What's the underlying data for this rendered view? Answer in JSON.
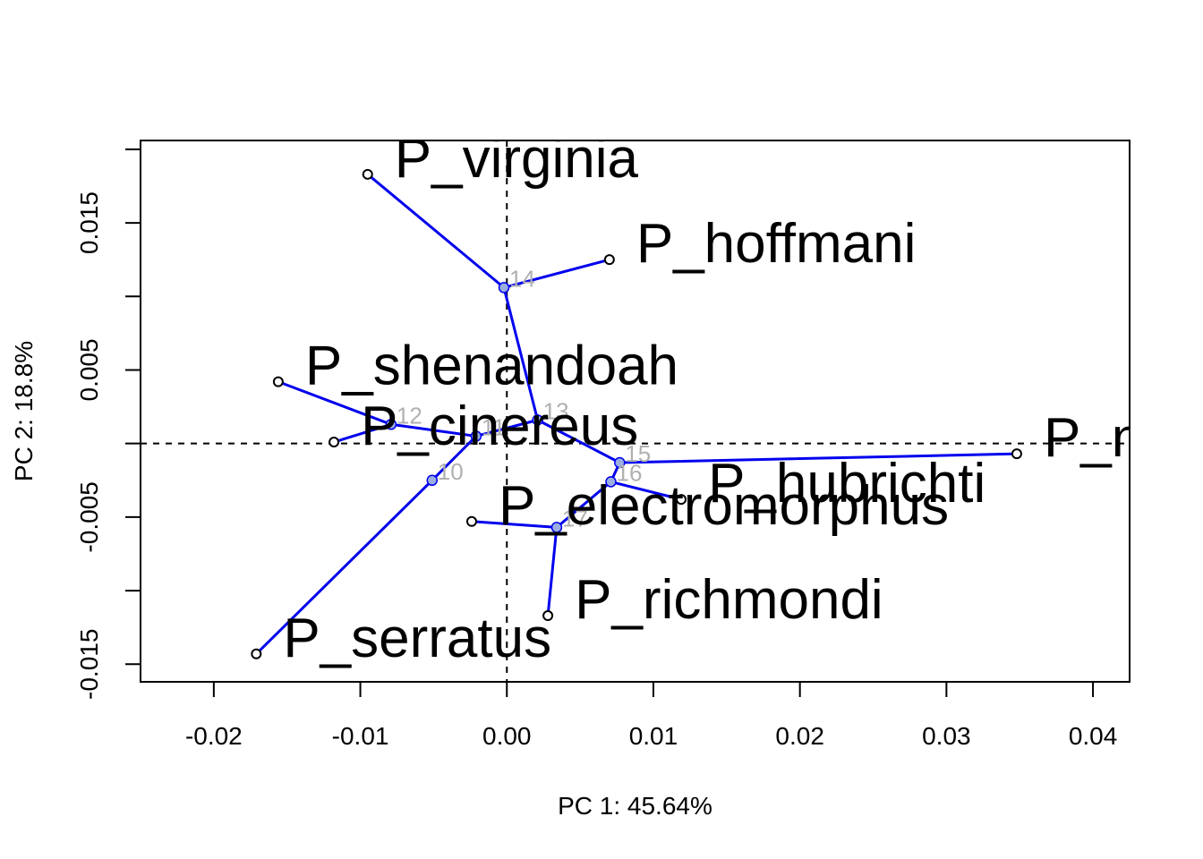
{
  "chart_data": {
    "type": "scatter",
    "title": "",
    "xlabel": "PC 1: 45.64%",
    "ylabel": "PC 2: 18.8%",
    "xlim": [
      -0.025,
      0.0425
    ],
    "ylim": [
      -0.0162,
      0.0206
    ],
    "x_ticks": [
      -0.02,
      -0.01,
      0.0,
      0.01,
      0.02,
      0.03,
      0.04
    ],
    "x_tick_labels": [
      "-0.02",
      "-0.01",
      "0.00",
      "0.01",
      "0.02",
      "0.03",
      "0.04"
    ],
    "y_ticks": [
      -0.015,
      -0.01,
      -0.005,
      0.0,
      0.005,
      0.01,
      0.015,
      0.02
    ],
    "y_tick_labels": [
      "-0.015",
      "",
      "-0.005",
      "",
      "0.005",
      "",
      "0.015",
      ""
    ],
    "reference_lines": {
      "x": 0,
      "y": 0,
      "style": "dashed"
    },
    "tips": [
      {
        "label": "P_virginia",
        "x": -0.0095,
        "y": 0.0183
      },
      {
        "label": "P_hoffmani",
        "x": 0.007,
        "y": 0.0125
      },
      {
        "label": "P_shenandoah",
        "x": -0.0156,
        "y": 0.0042
      },
      {
        "label": "P_cinereus",
        "x": -0.0118,
        "y": 0.0001
      },
      {
        "label": "P_serratus",
        "x": -0.0171,
        "y": -0.0143
      },
      {
        "label": "P_electromorphus",
        "x": -0.0024,
        "y": -0.0053
      },
      {
        "label": "P_richmondi",
        "x": 0.0028,
        "y": -0.0117
      },
      {
        "label": "P_hubrichti",
        "x": 0.0119,
        "y": -0.0038
      },
      {
        "label": "P_n",
        "x": 0.0348,
        "y": -0.0007
      }
    ],
    "nodes": [
      {
        "label": "10",
        "x": -0.0051,
        "y": -0.0025
      },
      {
        "label": "11",
        "x": -0.0021,
        "y": 0.0005
      },
      {
        "label": "12",
        "x": -0.0079,
        "y": 0.0013
      },
      {
        "label": "13",
        "x": 0.0021,
        "y": 0.0016
      },
      {
        "label": "14",
        "x": -0.0002,
        "y": 0.0106
      },
      {
        "label": "15",
        "x": 0.0077,
        "y": -0.0013
      },
      {
        "label": "16",
        "x": 0.0071,
        "y": -0.0026
      },
      {
        "label": "17",
        "x": 0.0034,
        "y": -0.0057
      }
    ],
    "edges": [
      [
        "14",
        "P_virginia"
      ],
      [
        "14",
        "P_hoffmani"
      ],
      [
        "14",
        "13"
      ],
      [
        "13",
        "11"
      ],
      [
        "13",
        "15"
      ],
      [
        "11",
        "12"
      ],
      [
        "11",
        "10"
      ],
      [
        "12",
        "P_shenandoah"
      ],
      [
        "12",
        "P_cinereus"
      ],
      [
        "10",
        "P_serratus"
      ],
      [
        "15",
        "P_n"
      ],
      [
        "15",
        "16"
      ],
      [
        "16",
        "P_hubrichti"
      ],
      [
        "16",
        "17"
      ],
      [
        "17",
        "P_electromorphus"
      ],
      [
        "17",
        "P_richmondi"
      ]
    ],
    "colors": {
      "edge": "#0000ee",
      "node_fill": "#9aaee0",
      "node_label": "#b0b0b0",
      "tip_fill": "#ffffff",
      "axis": "#000000"
    },
    "grid": false,
    "legend": "none"
  }
}
